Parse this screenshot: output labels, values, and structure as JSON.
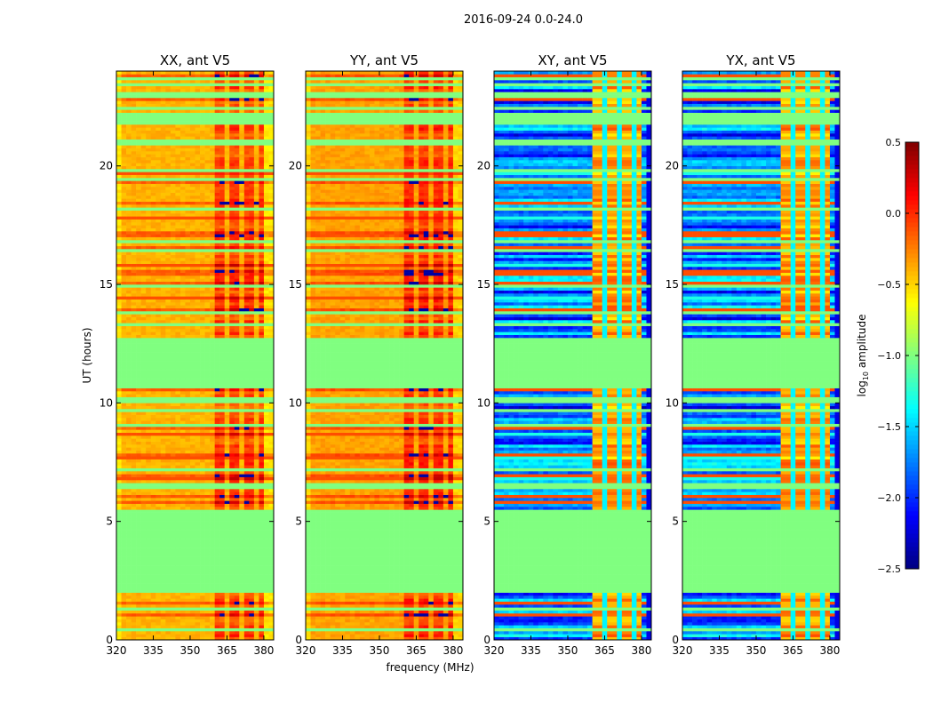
{
  "chart_data": {
    "type": "heatmap",
    "suptitle": "2016-09-24 0.0-24.0",
    "xlabel": "frequency (MHz)",
    "ylabel": "UT (hours)",
    "xlim": [
      320,
      384
    ],
    "ylim": [
      0,
      24
    ],
    "xticks": [
      "320",
      "335",
      "350",
      "365",
      "380"
    ],
    "xtick_values": [
      320,
      335,
      350,
      365,
      380
    ],
    "yticks": [
      "0",
      "5",
      "10",
      "15",
      "20"
    ],
    "ytick_values": [
      0,
      5,
      10,
      15,
      20
    ],
    "panels": [
      {
        "title": "XX, ant V5",
        "base_level": -0.4,
        "kind": "parallel"
      },
      {
        "title": "YY, ant V5",
        "base_level": -0.35,
        "kind": "parallel"
      },
      {
        "title": "XY, ant V5",
        "base_level": -1.8,
        "kind": "cross"
      },
      {
        "title": "YX, ant V5",
        "base_level": -1.8,
        "kind": "cross"
      }
    ],
    "flagged_ranges_hours": [
      [
        2.0,
        5.5
      ],
      [
        10.6,
        12.8
      ],
      [
        21.7,
        22.2
      ]
    ],
    "flagged_level": -1.0,
    "strong_band_mhz": [
      361,
      380
    ],
    "colorbar": {
      "label": "log10 amplitude",
      "label_main": "log",
      "label_sub": "10",
      "label_rest": " amplitude",
      "range": [
        -2.5,
        0.5
      ],
      "ticks": [
        "0.5",
        "0.0",
        "−0.5",
        "−1.0",
        "−1.5",
        "−2.0",
        "−2.5"
      ],
      "tick_values": [
        0.5,
        0.0,
        -0.5,
        -1.0,
        -1.5,
        -2.0,
        -2.5
      ],
      "colormap": "jet"
    }
  }
}
